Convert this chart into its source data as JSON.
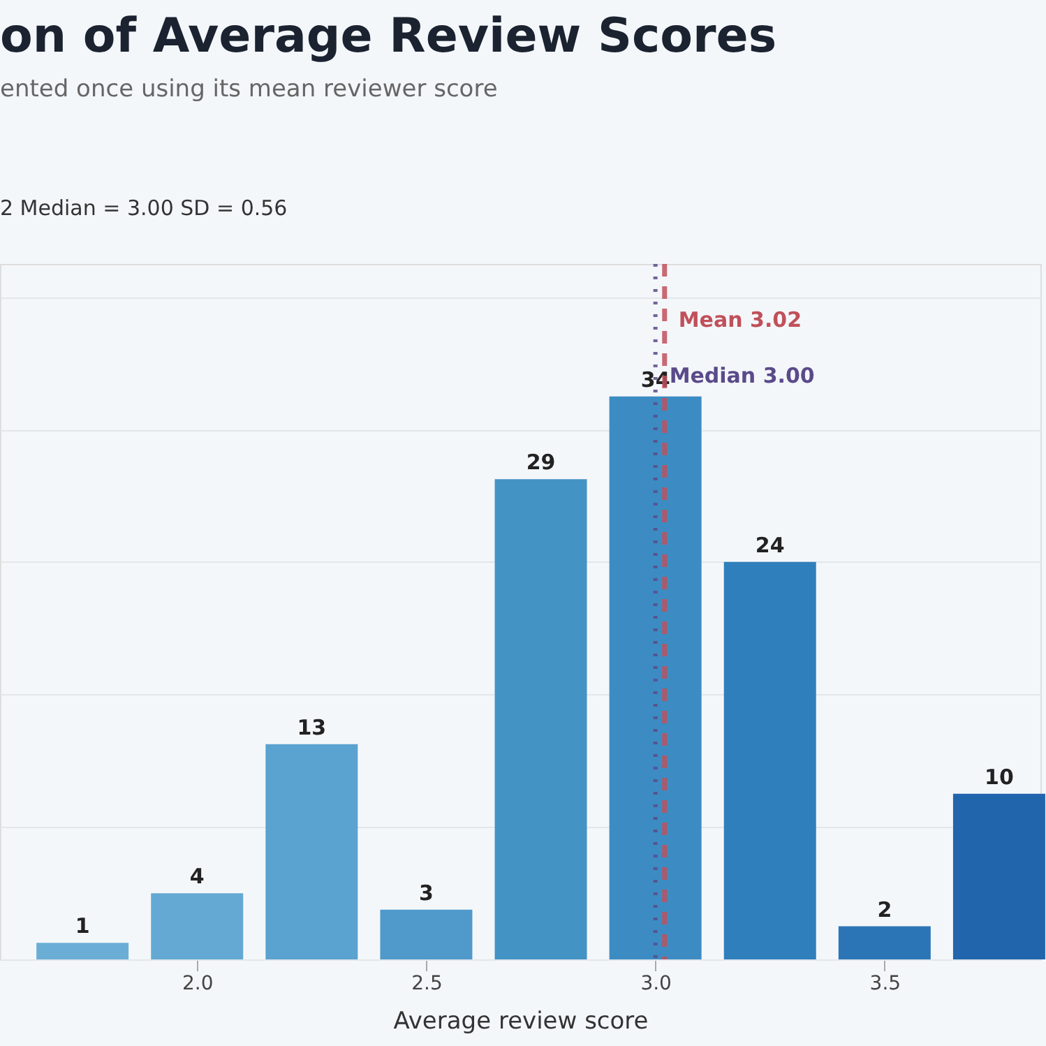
{
  "chart_data": {
    "type": "bar",
    "title": "on of Average Review Scores",
    "subtitle": "ented once using its mean reviewer score",
    "xlabel": "Average review score",
    "annotations": [
      "2     Median = 3.00     SD = 0.56"
    ],
    "x": [
      1.75,
      2.0,
      2.25,
      2.5,
      2.75,
      3.0,
      3.25,
      3.5,
      3.75
    ],
    "values": [
      1,
      4,
      13,
      3,
      29,
      34,
      24,
      2,
      10
    ],
    "colors": [
      "#6aaed6",
      "#64a9d3",
      "#5aa2cf",
      "#4f9acb",
      "#4493c5",
      "#3c8cc3",
      "#2f7fbc",
      "#2b75b6",
      "#2166ac"
    ],
    "data_labels": true,
    "xlim": [
      1.57,
      3.84
    ],
    "xticks": [
      {
        "value": 2.0,
        "label": "2.0"
      },
      {
        "value": 2.5,
        "label": "2.5"
      },
      {
        "value": 3.0,
        "label": "3.0"
      },
      {
        "value": 3.5,
        "label": "3.5"
      }
    ],
    "ylim": [
      0,
      42
    ],
    "yticks": [
      {
        "value": 0,
        "label": null
      },
      {
        "value": 8,
        "label": null
      },
      {
        "value": 16,
        "label": null
      },
      {
        "value": 24,
        "label": null
      },
      {
        "value": 32,
        "label": null
      },
      {
        "value": 40,
        "label": null
      }
    ],
    "tick_labels": "x",
    "grid": "y",
    "ref_lines": [
      {
        "axis": "x",
        "value": 3.02,
        "label": "Mean  3.02",
        "color": "#c0505a",
        "line_style": "dashed"
      },
      {
        "axis": "x",
        "value": 3.0,
        "label": "Median  3.00",
        "color": "#5a4a8a",
        "line_style": "dotted"
      }
    ]
  }
}
